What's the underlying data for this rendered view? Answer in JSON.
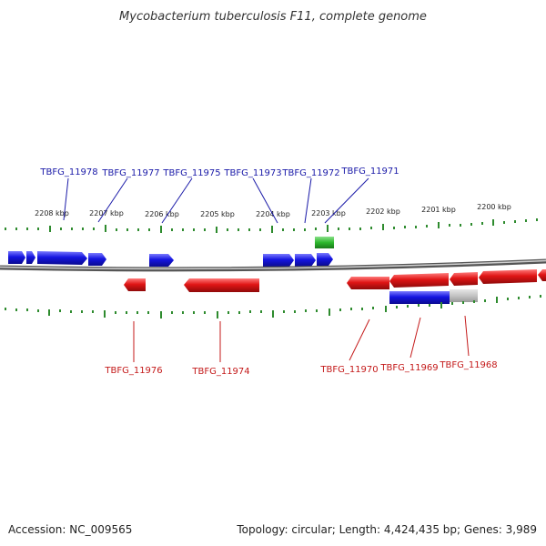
{
  "title": "Mycobacterium tuberculosis F11, complete genome",
  "footer": {
    "accession": "Accession: NC_009565",
    "summary": "Topology: circular; Length: 4,424,435 bp; Genes: 3,989"
  },
  "colors": {
    "forward_gene": "#1515e0",
    "reverse_gene": "#e01515",
    "rna_feature": "#2db82d",
    "label_forward": "#1a1aa8",
    "label_reverse": "#c41a1a",
    "tick": "#2e8b2e",
    "backbone": "#808080"
  },
  "scale": {
    "labels": [
      "2208 kbp",
      "2207 kbp",
      "2206 kbp",
      "2205 kbp",
      "2204 kbp",
      "2203 kbp",
      "2202 kbp",
      "2201 kbp",
      "2200 kbp"
    ]
  },
  "forward_gene_labels": [
    "TBFG_11978",
    "TBFG_11977",
    "TBFG_11975",
    "TBFG_11973",
    "TBFG_11972",
    "TBFG_11971"
  ],
  "reverse_gene_labels": [
    "TBFG_11976",
    "TBFG_11974",
    "TBFG_11970",
    "TBFG_11969",
    "TBFG_11968"
  ]
}
